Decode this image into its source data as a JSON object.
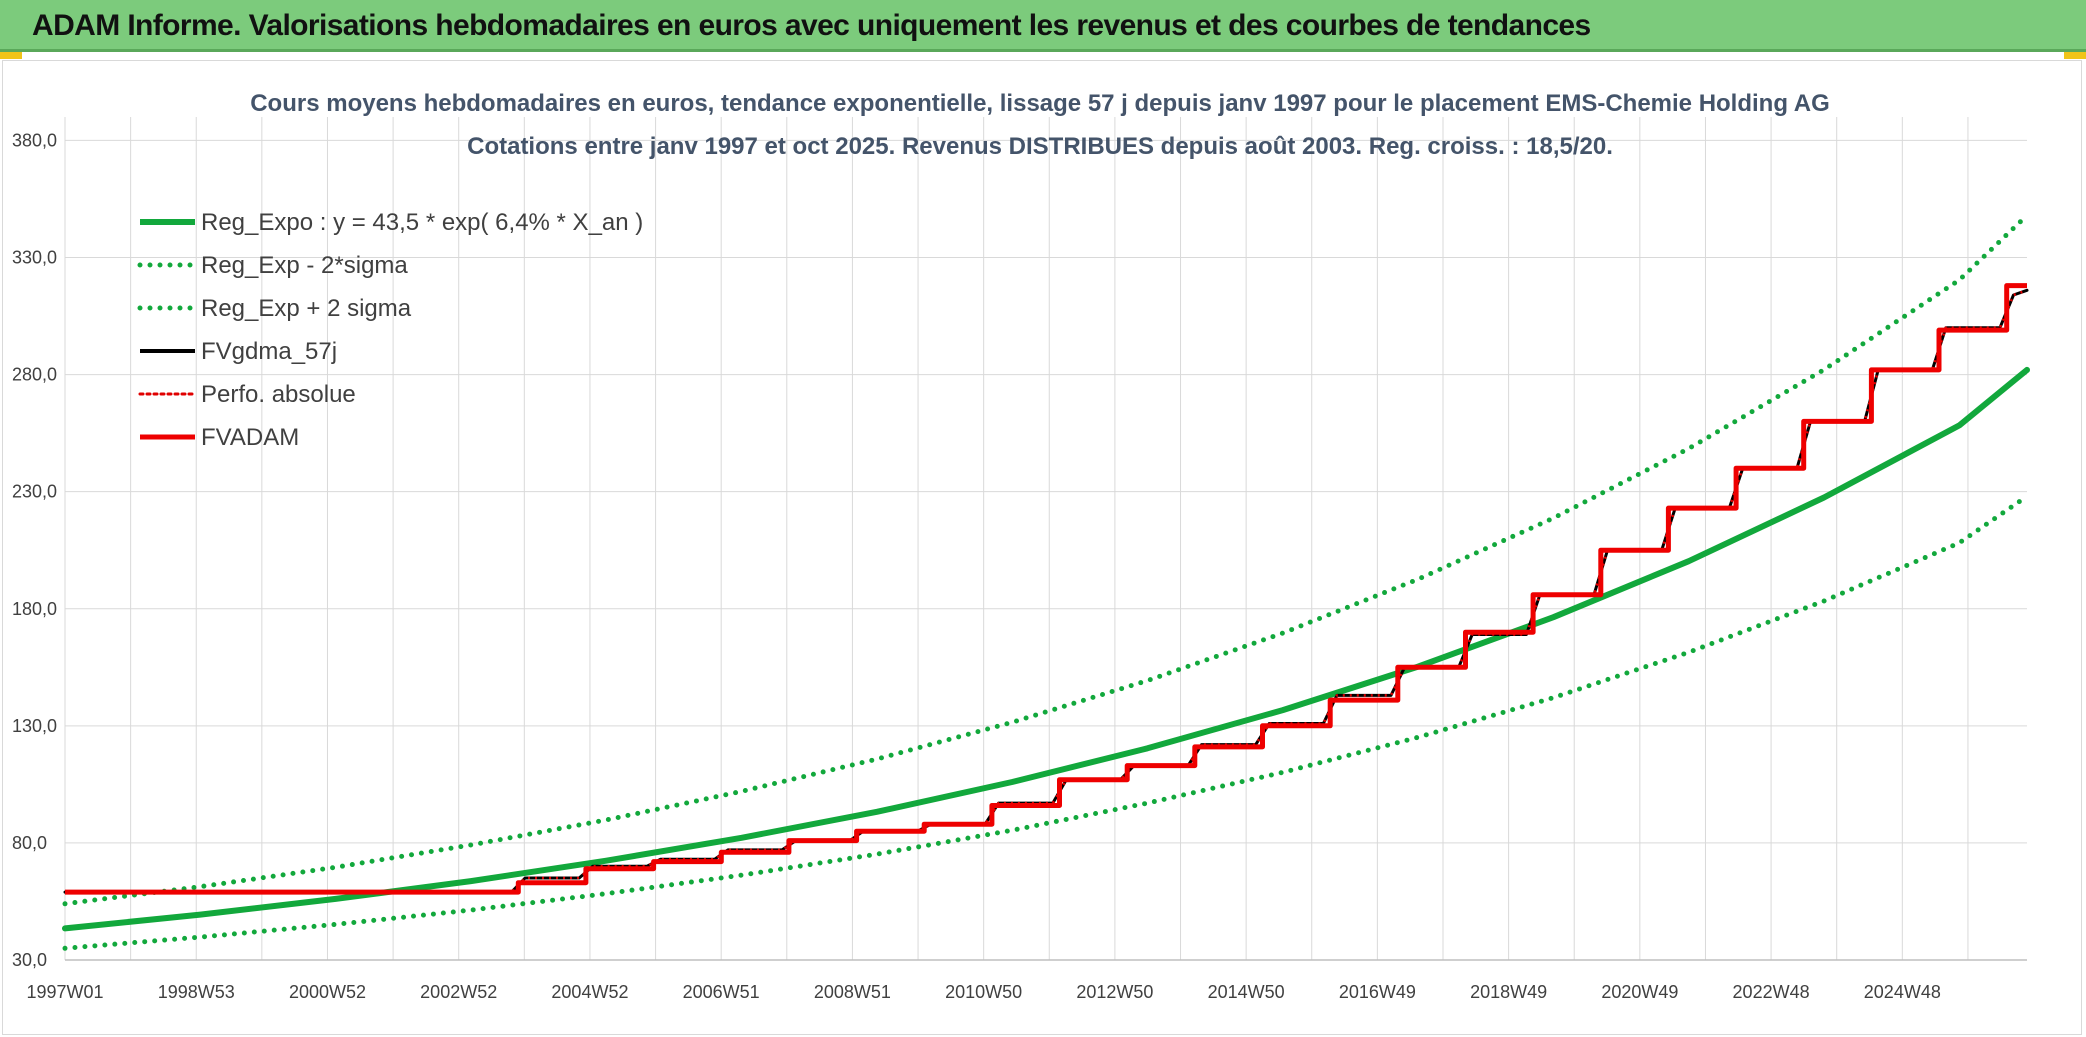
{
  "banner": {
    "title": "ADAM Informe. Valorisations hebdomadaires en euros avec uniquement les revenus et des courbes de tendances"
  },
  "chart_data": {
    "type": "line",
    "title": "Cours moyens hebdomadaires en euros, tendance exponentielle, lissage 57 j depuis janv 1997 pour le placement EMS-Chemie Holding AG",
    "subtitle": "Cotations entre janv 1997 et oct 2025. Revenus DISTRIBUES depuis août 2003. Reg. croiss. : 18,5/20.",
    "x_tick_labels": [
      "1997W01",
      "1998W53",
      "2000W52",
      "2002W52",
      "2004W52",
      "2006W51",
      "2008W51",
      "2010W50",
      "2012W50",
      "2014W50",
      "2016W49",
      "2018W49",
      "2020W49",
      "2022W48",
      "2024W48"
    ],
    "x_range": [
      1997.0,
      2026.0
    ],
    "ylim": [
      30,
      390
    ],
    "y_ticks": [
      30,
      80,
      130,
      180,
      230,
      280,
      330,
      380
    ],
    "y_tick_labels": [
      "30,0",
      "80,0",
      "130,0",
      "180,0",
      "230,0",
      "280,0",
      "330,0",
      "380,0"
    ],
    "grid": true,
    "legend_position": "top-left",
    "series": [
      {
        "name": "Reg_Expo : y = 43,5 * exp( 6,4% *  X_an )",
        "style": "solid",
        "color": "#12a83c",
        "x": [
          1997.0,
          1999.0,
          2001.0,
          2003.0,
          2005.0,
          2007.0,
          2009.0,
          2011.0,
          2013.0,
          2015.0,
          2017.0,
          2019.0,
          2021.0,
          2023.0,
          2025.0,
          2026.0
        ],
        "y": [
          43.5,
          49.4,
          56.1,
          63.7,
          72.4,
          82.2,
          93.3,
          106.0,
          120.4,
          136.7,
          155.3,
          176.4,
          200.3,
          227.5,
          258.3,
          282.0
        ]
      },
      {
        "name": "Reg_Exp - 2*sigma",
        "style": "dotted",
        "color": "#12a83c",
        "x": [
          1997.0,
          1999.0,
          2001.0,
          2003.0,
          2005.0,
          2007.0,
          2009.0,
          2011.0,
          2013.0,
          2015.0,
          2017.0,
          2019.0,
          2021.0,
          2023.0,
          2025.0,
          2026.0
        ],
        "y": [
          35.0,
          39.8,
          45.2,
          51.3,
          58.3,
          66.2,
          75.2,
          85.4,
          97.0,
          110.1,
          125.1,
          142.0,
          161.4,
          183.3,
          208.1,
          228.0
        ]
      },
      {
        "name": "Reg_Exp + 2 sigma",
        "style": "dotted",
        "color": "#12a83c",
        "x": [
          1997.0,
          1999.0,
          2001.0,
          2003.0,
          2005.0,
          2007.0,
          2009.0,
          2011.0,
          2013.0,
          2015.0,
          2017.0,
          2019.0,
          2021.0,
          2023.0,
          2025.0,
          2026.0
        ],
        "y": [
          54.0,
          61.3,
          69.6,
          79.1,
          89.8,
          102.0,
          115.8,
          131.5,
          149.3,
          169.6,
          192.6,
          218.7,
          248.4,
          282.1,
          320.4,
          348.0
        ]
      },
      {
        "name": "FVgdma_57j",
        "style": "solid",
        "color": "#000000",
        "x": [
          1997.0,
          2003.6,
          2003.8,
          2004.6,
          2004.8,
          2005.6,
          2005.8,
          2006.6,
          2006.8,
          2007.6,
          2007.8,
          2008.6,
          2008.8,
          2009.6,
          2009.8,
          2010.6,
          2010.8,
          2011.6,
          2011.8,
          2012.6,
          2012.8,
          2013.6,
          2013.8,
          2014.6,
          2014.8,
          2015.6,
          2015.8,
          2016.6,
          2016.8,
          2017.6,
          2017.8,
          2018.6,
          2018.8,
          2019.6,
          2019.8,
          2020.6,
          2020.8,
          2021.6,
          2021.8,
          2022.6,
          2022.8,
          2023.6,
          2023.8,
          2024.6,
          2024.8,
          2025.6,
          2025.8,
          2026.0
        ],
        "y": [
          59.0,
          59.0,
          65.0,
          65.0,
          70.0,
          70.0,
          73.0,
          73.0,
          77.0,
          77.0,
          81.0,
          81.0,
          85.0,
          85.0,
          88.0,
          88.0,
          97.0,
          97.0,
          107.0,
          107.0,
          113.0,
          113.0,
          122.0,
          122.0,
          131.0,
          131.0,
          143.0,
          143.0,
          155.0,
          155.0,
          169.0,
          169.0,
          186.0,
          186.0,
          205.0,
          205.0,
          223.0,
          223.0,
          240.0,
          240.0,
          260.0,
          260.0,
          282.0,
          282.0,
          300.0,
          300.0,
          314.0,
          316.0
        ]
      },
      {
        "name": "Perfo. absolue",
        "style": "dotted",
        "color": "#e00000",
        "x": [
          1997.0,
          2003.6,
          2003.8,
          2004.6,
          2004.8,
          2005.6,
          2005.8,
          2006.6,
          2006.8,
          2007.6,
          2007.8,
          2008.6,
          2008.8,
          2009.6,
          2009.8,
          2010.6,
          2010.8,
          2011.6,
          2011.8,
          2012.6,
          2012.8,
          2013.6,
          2013.8,
          2014.6,
          2014.8,
          2015.6,
          2015.8,
          2016.6,
          2016.8,
          2017.6,
          2017.8,
          2018.6,
          2018.8,
          2019.6,
          2019.8,
          2020.6,
          2020.8,
          2021.6,
          2021.8,
          2022.6,
          2022.8,
          2023.6,
          2023.8,
          2024.6,
          2024.8,
          2025.6,
          2025.8,
          2026.0
        ],
        "y": [
          59.0,
          59.0,
          65.0,
          65.0,
          70.0,
          70.0,
          73.0,
          73.0,
          77.0,
          77.0,
          81.0,
          81.0,
          85.0,
          85.0,
          88.0,
          88.0,
          97.0,
          97.0,
          107.0,
          107.0,
          113.0,
          113.0,
          122.0,
          122.0,
          131.0,
          131.0,
          143.0,
          143.0,
          155.0,
          155.0,
          169.0,
          169.0,
          186.0,
          186.0,
          205.0,
          205.0,
          223.0,
          223.0,
          240.0,
          240.0,
          260.0,
          260.0,
          282.0,
          282.0,
          300.0,
          300.0,
          314.0,
          316.0
        ]
      },
      {
        "name": "FVADAM",
        "style": "step",
        "color": "#ee0000",
        "x": [
          1997.0,
          2003.7,
          2003.7,
          2004.7,
          2004.7,
          2005.7,
          2005.7,
          2006.7,
          2006.7,
          2007.7,
          2007.7,
          2008.7,
          2008.7,
          2009.7,
          2009.7,
          2010.7,
          2010.7,
          2011.7,
          2011.7,
          2012.7,
          2012.7,
          2013.7,
          2013.7,
          2014.7,
          2014.7,
          2015.7,
          2015.7,
          2016.7,
          2016.7,
          2017.7,
          2017.7,
          2018.7,
          2018.7,
          2019.7,
          2019.7,
          2020.7,
          2020.7,
          2021.7,
          2021.7,
          2022.7,
          2022.7,
          2023.7,
          2023.7,
          2024.7,
          2024.7,
          2025.7,
          2025.7,
          2026.0
        ],
        "y": [
          59.0,
          59.0,
          63.0,
          63.0,
          69.0,
          69.0,
          72.0,
          72.0,
          76.0,
          76.0,
          81.0,
          81.0,
          85.0,
          85.0,
          88.0,
          88.0,
          96.0,
          96.0,
          107.0,
          107.0,
          113.0,
          113.0,
          121.0,
          121.0,
          130.0,
          130.0,
          141.0,
          141.0,
          155.0,
          155.0,
          170.0,
          170.0,
          186.0,
          186.0,
          205.0,
          205.0,
          223.0,
          223.0,
          240.0,
          240.0,
          260.0,
          260.0,
          282.0,
          282.0,
          299.0,
          299.0,
          318.0,
          318.0
        ]
      }
    ]
  }
}
